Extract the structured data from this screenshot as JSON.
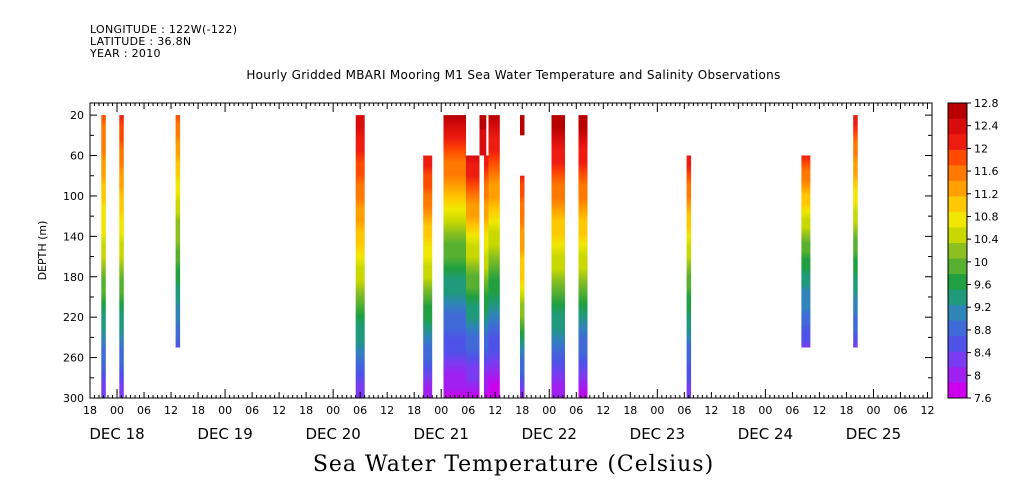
{
  "header": {
    "longitude": "LONGITUDE : 122W(-122)",
    "latitude": "LATITUDE : 36.8N",
    "year": "YEAR : 2010"
  },
  "chart_data": {
    "type": "heatmap",
    "title": "Hourly Gridded MBARI Mooring M1 Sea Water Temperature and Salinity Observations",
    "xlabel": "Sea Water Temperature (Celsius)",
    "ylabel": "DEPTH (m)",
    "ylim": [
      300,
      0
    ],
    "yaxis_inverted": true,
    "x_unit": "hours since DEC 18 00 (2010)",
    "xlim": [
      -6,
      181
    ],
    "y_ticks": [
      20,
      60,
      100,
      140,
      180,
      220,
      260,
      300
    ],
    "x_hour_ticks": [
      {
        "h": -6,
        "label": "18"
      },
      {
        "h": 0,
        "label": "00"
      },
      {
        "h": 6,
        "label": "06"
      },
      {
        "h": 12,
        "label": "12"
      },
      {
        "h": 18,
        "label": "18"
      },
      {
        "h": 24,
        "label": "00"
      },
      {
        "h": 30,
        "label": "06"
      },
      {
        "h": 36,
        "label": "12"
      },
      {
        "h": 42,
        "label": "18"
      },
      {
        "h": 48,
        "label": "00"
      },
      {
        "h": 54,
        "label": "06"
      },
      {
        "h": 60,
        "label": "12"
      },
      {
        "h": 66,
        "label": "18"
      },
      {
        "h": 72,
        "label": "00"
      },
      {
        "h": 78,
        "label": "06"
      },
      {
        "h": 84,
        "label": "12"
      },
      {
        "h": 90,
        "label": "18"
      },
      {
        "h": 96,
        "label": "00"
      },
      {
        "h": 102,
        "label": "06"
      },
      {
        "h": 108,
        "label": "12"
      },
      {
        "h": 114,
        "label": "18"
      },
      {
        "h": 120,
        "label": "00"
      },
      {
        "h": 126,
        "label": "06"
      },
      {
        "h": 132,
        "label": "12"
      },
      {
        "h": 138,
        "label": "18"
      },
      {
        "h": 144,
        "label": "00"
      },
      {
        "h": 150,
        "label": "06"
      },
      {
        "h": 156,
        "label": "12"
      },
      {
        "h": 162,
        "label": "18"
      },
      {
        "h": 168,
        "label": "00"
      },
      {
        "h": 174,
        "label": "06"
      },
      {
        "h": 180,
        "label": "12"
      }
    ],
    "date_labels": [
      {
        "h": 0,
        "label": "DEC 18"
      },
      {
        "h": 24,
        "label": "DEC 19"
      },
      {
        "h": 48,
        "label": "DEC 20"
      },
      {
        "h": 72,
        "label": "DEC 21"
      },
      {
        "h": 96,
        "label": "DEC 22"
      },
      {
        "h": 120,
        "label": "DEC 23"
      },
      {
        "h": 144,
        "label": "DEC 24"
      },
      {
        "h": 168,
        "label": "DEC 25"
      }
    ],
    "colorbar": {
      "levels": [
        7.6,
        8,
        8.4,
        8.8,
        9.2,
        9.6,
        10,
        10.4,
        10.8,
        11.2,
        11.6,
        12,
        12.4,
        12.8
      ],
      "labels": [
        "7.6",
        "8",
        "8.4",
        "8.8",
        "9.2",
        "9.6",
        "10",
        "10.4",
        "10.8",
        "11.2",
        "11.6",
        "12",
        "12.4",
        "12.8"
      ],
      "colors": [
        "#cc00ee",
        "#a020f0",
        "#7a3cf0",
        "#4f52e8",
        "#3f6ad8",
        "#2f84b8",
        "#1f9a7a",
        "#20a040",
        "#58b030",
        "#8cc020",
        "#c8d800",
        "#f0e800",
        "#ffc800",
        "#ffa000",
        "#ff7800",
        "#ff4a00",
        "#ee1c10",
        "#d80c0c",
        "#b80000"
      ]
    },
    "series": [
      {
        "h0": -3.5,
        "h1": -2.5,
        "top": 20,
        "bottom": 300,
        "t_top": 11.8,
        "t_mid": 10.4,
        "t_bottom": 8.2
      },
      {
        "h0": 0.5,
        "h1": 1.5,
        "top": 20,
        "bottom": 300,
        "t_top": 12.0,
        "t_mid": 10.4,
        "t_bottom": 8.2
      },
      {
        "h0": 13,
        "h1": 14,
        "top": 20,
        "bottom": 250,
        "t_top": 11.8,
        "t_mid": 10.2,
        "t_bottom": 8.6
      },
      {
        "h0": 53,
        "h1": 55,
        "top": 20,
        "bottom": 300,
        "t_top": 12.4,
        "t_mid": 10.8,
        "t_bottom": 8.2
      },
      {
        "h0": 68,
        "h1": 70,
        "top": 60,
        "bottom": 300,
        "t_top": 12.2,
        "t_mid": 10.4,
        "t_bottom": 7.9
      },
      {
        "h0": 72.5,
        "h1": 77.5,
        "top": 20,
        "bottom": 300,
        "t_top": 12.6,
        "t_mid": 9.8,
        "t_bottom": 7.8
      },
      {
        "h0": 77.5,
        "h1": 80.5,
        "top": 60,
        "bottom": 300,
        "t_top": 12.4,
        "t_mid": 10.0,
        "t_bottom": 7.8
      },
      {
        "h0": 80.5,
        "h1": 82,
        "top": 20,
        "bottom": 60,
        "t_top": 12.6,
        "t_mid": 12.5,
        "t_bottom": 12.4
      },
      {
        "h0": 81.5,
        "h1": 82.5,
        "top": 60,
        "bottom": 300,
        "t_top": 12.2,
        "t_mid": 10.2,
        "t_bottom": 7.7
      },
      {
        "h0": 82.5,
        "h1": 85,
        "top": 20,
        "bottom": 300,
        "t_top": 12.6,
        "t_mid": 10.2,
        "t_bottom": 7.6
      },
      {
        "h0": 89.5,
        "h1": 90.5,
        "top": 20,
        "bottom": 40,
        "t_top": 12.8,
        "t_mid": 12.8,
        "t_bottom": 12.7
      },
      {
        "h0": 89.5,
        "h1": 90.5,
        "top": 80,
        "bottom": 300,
        "t_top": 12.0,
        "t_mid": 10.8,
        "t_bottom": 8.0
      },
      {
        "h0": 96.5,
        "h1": 99.5,
        "top": 20,
        "bottom": 300,
        "t_top": 12.8,
        "t_mid": 10.6,
        "t_bottom": 7.9
      },
      {
        "h0": 102.5,
        "h1": 104.5,
        "top": 20,
        "bottom": 300,
        "t_top": 12.8,
        "t_mid": 10.6,
        "t_bottom": 7.8
      },
      {
        "h0": 126.5,
        "h1": 127.5,
        "top": 60,
        "bottom": 300,
        "t_top": 12.2,
        "t_mid": 10.0,
        "t_bottom": 8.2
      },
      {
        "h0": 152,
        "h1": 154,
        "top": 60,
        "bottom": 250,
        "t_top": 12.0,
        "t_mid": 9.8,
        "t_bottom": 8.4
      },
      {
        "h0": 163.5,
        "h1": 164.5,
        "top": 20,
        "bottom": 250,
        "t_top": 12.2,
        "t_mid": 10.2,
        "t_bottom": 8.4
      }
    ]
  }
}
